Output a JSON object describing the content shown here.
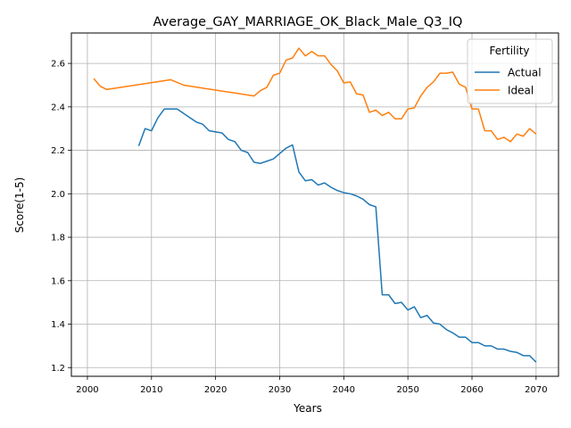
{
  "chart_data": {
    "type": "line",
    "title": "Average_GAY_MARRIAGE_OK_Black_Male_Q3_IQ",
    "xlabel": "Years",
    "ylabel": "Score(1-5)",
    "xlim": [
      1997.5,
      2073.5
    ],
    "ylim": [
      1.16,
      2.74
    ],
    "xticks": [
      2000,
      2010,
      2020,
      2030,
      2040,
      2050,
      2060,
      2070
    ],
    "yticks": [
      1.2,
      1.4,
      1.6,
      1.8,
      2.0,
      2.2,
      2.4,
      2.6
    ],
    "xtick_labels": [
      "2000",
      "2010",
      "2020",
      "2030",
      "2040",
      "2050",
      "2060",
      "2070"
    ],
    "ytick_labels": [
      "1.2",
      "1.4",
      "1.6",
      "1.8",
      "2.0",
      "2.2",
      "2.4",
      "2.6"
    ],
    "grid": true,
    "legend": {
      "title": "Fertility",
      "position": "top-right"
    },
    "series": [
      {
        "name": "Actual",
        "color": "#1f77b4",
        "x": [
          2008,
          2009,
          2010,
          2011,
          2012,
          2013,
          2014,
          2015,
          2016,
          2017,
          2018,
          2019,
          2020,
          2021,
          2022,
          2023,
          2024,
          2025,
          2026,
          2027,
          2028,
          2029,
          2030,
          2031,
          2032,
          2033,
          2034,
          2035,
          2036,
          2037,
          2038,
          2039,
          2040,
          2041,
          2042,
          2043,
          2044,
          2045,
          2046,
          2047,
          2048,
          2049,
          2050,
          2051,
          2052,
          2053,
          2054,
          2055,
          2056,
          2057,
          2058,
          2059,
          2060,
          2061,
          2062,
          2063,
          2064,
          2065,
          2066,
          2067,
          2068,
          2069,
          2070
        ],
        "y": [
          2.22,
          2.3,
          2.29,
          2.35,
          2.39,
          2.39,
          2.39,
          2.37,
          2.35,
          2.33,
          2.32,
          2.29,
          2.285,
          2.28,
          2.25,
          2.24,
          2.2,
          2.19,
          2.145,
          2.14,
          2.15,
          2.16,
          2.185,
          2.21,
          2.225,
          2.1,
          2.06,
          2.065,
          2.04,
          2.05,
          2.03,
          2.015,
          2.005,
          2.0,
          1.99,
          1.975,
          1.95,
          1.94,
          1.535,
          1.535,
          1.495,
          1.5,
          1.465,
          1.48,
          1.43,
          1.44,
          1.405,
          1.4,
          1.375,
          1.36,
          1.34,
          1.34,
          1.315,
          1.315,
          1.3,
          1.3,
          1.285,
          1.285,
          1.275,
          1.27,
          1.255,
          1.255,
          1.225
        ]
      },
      {
        "name": "Ideal",
        "color": "#ff7f0e",
        "x": [
          2001,
          2002,
          2003,
          2013,
          2015,
          2026,
          2027,
          2028,
          2029,
          2030,
          2031,
          2032,
          2033,
          2034,
          2035,
          2036,
          2037,
          2038,
          2039,
          2040,
          2041,
          2042,
          2043,
          2044,
          2045,
          2046,
          2047,
          2048,
          2049,
          2050,
          2051,
          2052,
          2053,
          2054,
          2055,
          2056,
          2057,
          2058,
          2059,
          2060,
          2061,
          2062,
          2063,
          2064,
          2065,
          2066,
          2067,
          2068,
          2069,
          2070
        ],
        "y": [
          2.53,
          2.495,
          2.48,
          2.525,
          2.5,
          2.45,
          2.475,
          2.49,
          2.545,
          2.555,
          2.615,
          2.625,
          2.67,
          2.635,
          2.655,
          2.635,
          2.635,
          2.595,
          2.565,
          2.51,
          2.515,
          2.46,
          2.455,
          2.375,
          2.385,
          2.36,
          2.375,
          2.345,
          2.345,
          2.39,
          2.395,
          2.45,
          2.49,
          2.515,
          2.555,
          2.555,
          2.56,
          2.505,
          2.49,
          2.39,
          2.39,
          2.29,
          2.29,
          2.25,
          2.26,
          2.24,
          2.275,
          2.265,
          2.3,
          2.275
        ]
      }
    ]
  }
}
